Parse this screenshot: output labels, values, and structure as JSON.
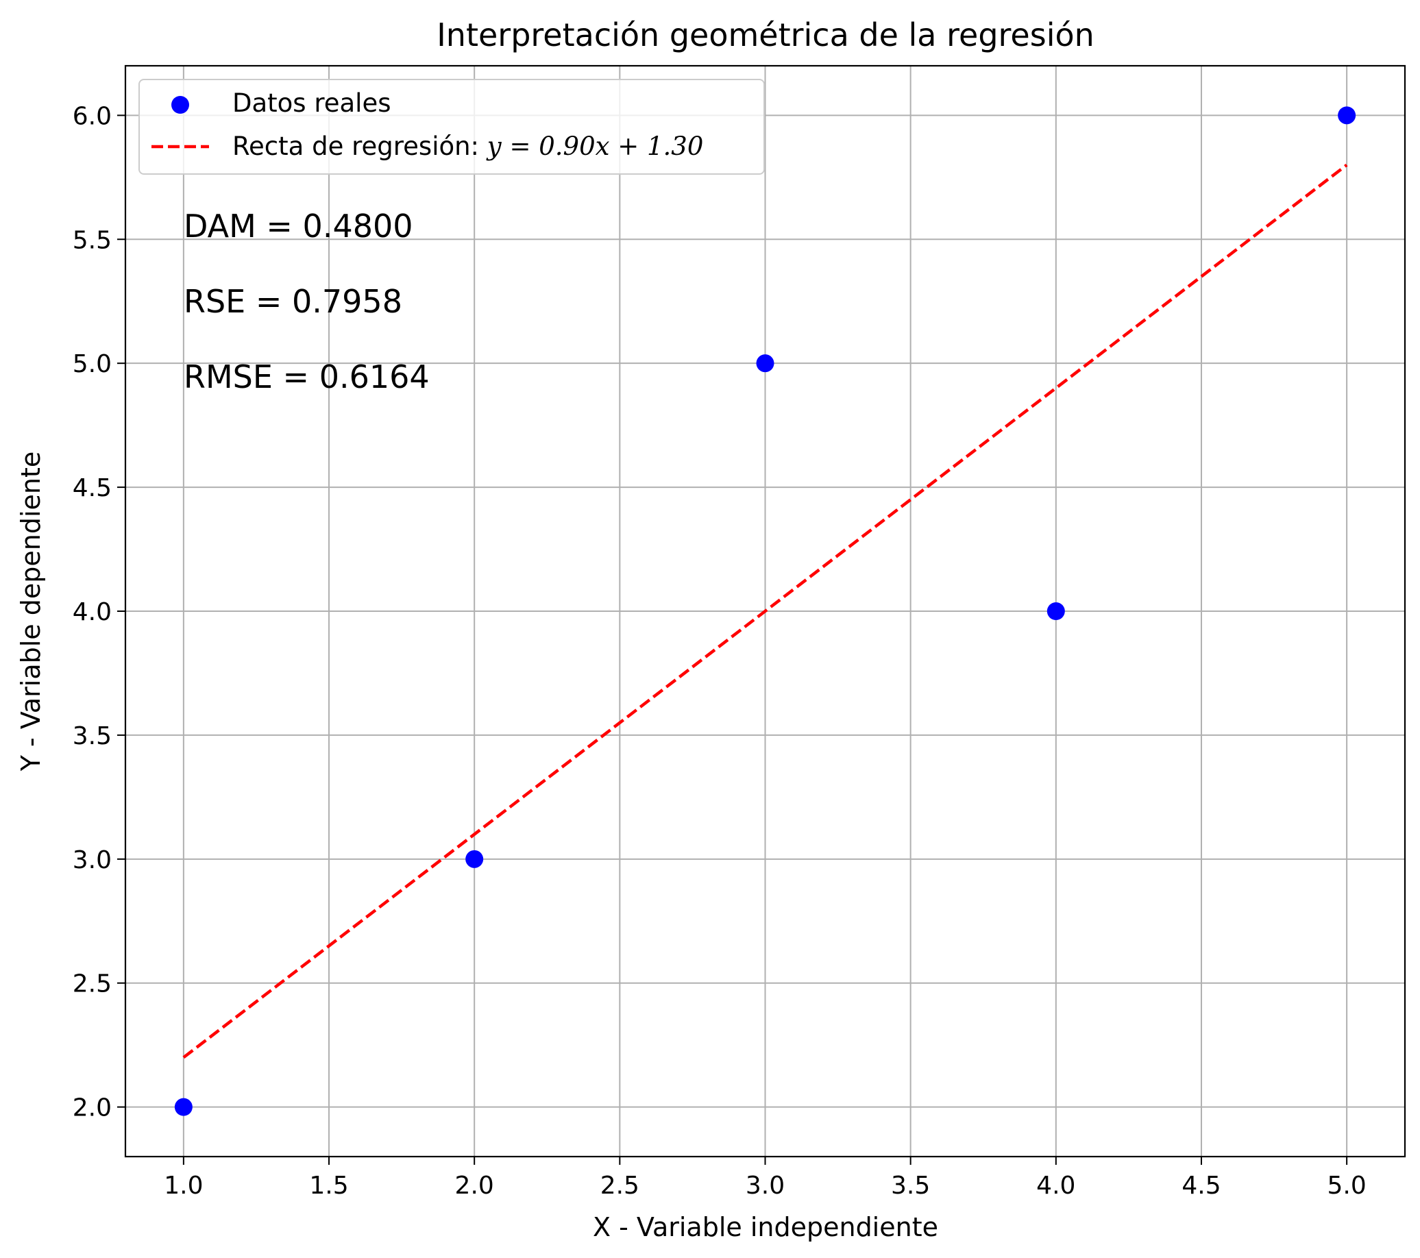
{
  "chart_data": {
    "type": "scatter",
    "title": "Interpretación geométrica de la regresión",
    "xlabel": "X - Variable independiente",
    "ylabel": "Y - Variable dependiente",
    "xlim": [
      0.8,
      5.2
    ],
    "ylim": [
      1.8,
      6.2
    ],
    "xticks": [
      1.0,
      1.5,
      2.0,
      2.5,
      3.0,
      3.5,
      4.0,
      4.5,
      5.0
    ],
    "yticks": [
      2.0,
      2.5,
      3.0,
      3.5,
      4.0,
      4.5,
      5.0,
      5.5,
      6.0
    ],
    "xtick_labels": [
      "1.0",
      "1.5",
      "2.0",
      "2.5",
      "3.0",
      "3.5",
      "4.0",
      "4.5",
      "5.0"
    ],
    "ytick_labels": [
      "2.0",
      "2.5",
      "3.0",
      "3.5",
      "4.0",
      "4.5",
      "5.0",
      "5.5",
      "6.0"
    ],
    "grid": true,
    "legend_position": "top-left",
    "series": [
      {
        "name": "Datos reales",
        "kind": "scatter",
        "color": "#0000ff",
        "x": [
          1,
          2,
          3,
          4,
          5
        ],
        "y": [
          2,
          3,
          5,
          4,
          6
        ]
      },
      {
        "name": "Recta de regresión: ",
        "name_math": "y = 0.90x + 1.30",
        "kind": "line",
        "style": "dashed",
        "color": "#ff0000",
        "x": [
          1,
          5
        ],
        "y": [
          2.2,
          5.8
        ],
        "slope": 0.9,
        "intercept": 1.3
      }
    ],
    "annotations": [
      "DAM = 0.4800",
      "RSE = 0.7958",
      "RMSE = 0.6164"
    ]
  }
}
